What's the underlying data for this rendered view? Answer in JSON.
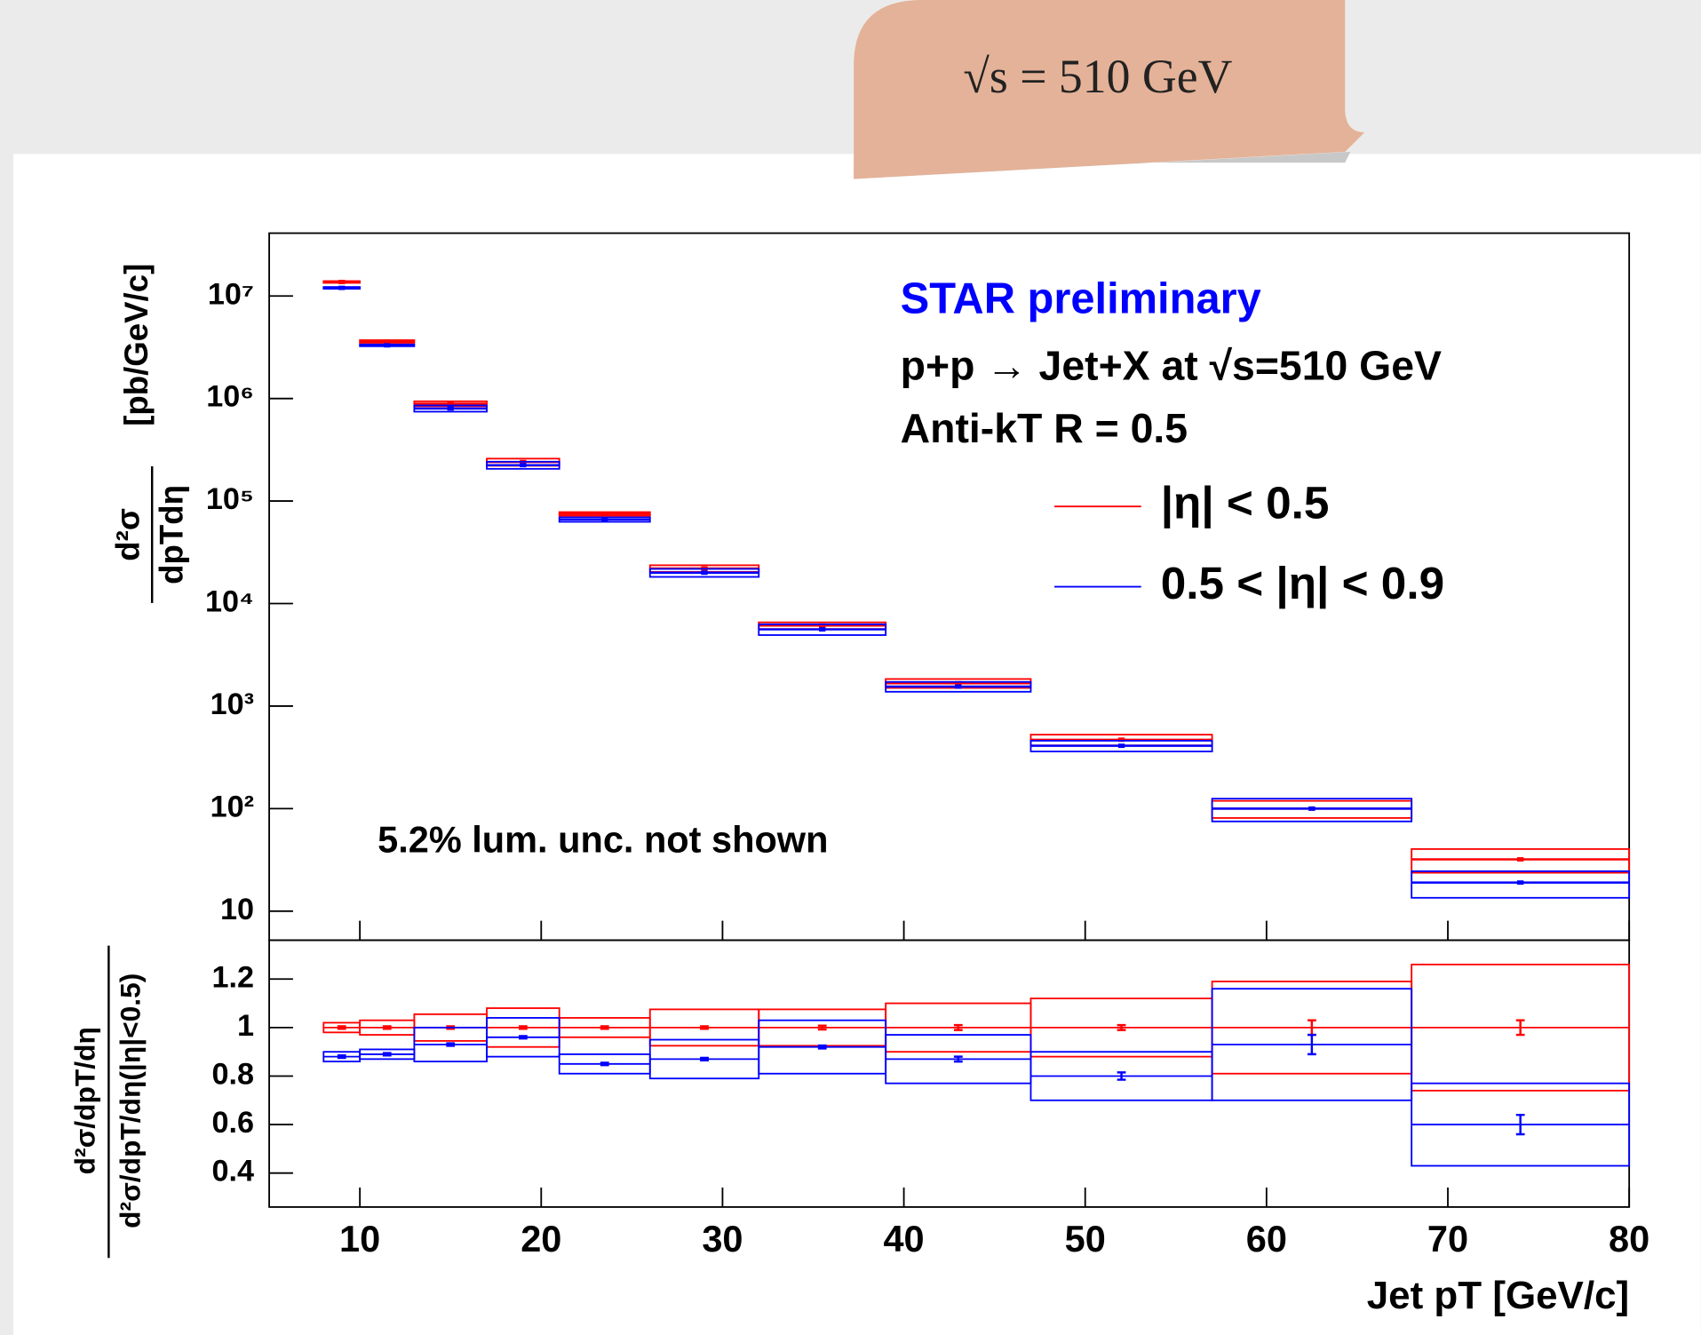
{
  "banner": "√s = 510 GeV",
  "chart_data": [
    {
      "type": "errorbox",
      "log_y": true,
      "annotations": [
        "STAR preliminary",
        "p+p → Jet+X at √s=510 GeV",
        "Anti-kT R = 0.5",
        "5.2% lum. unc. not shown"
      ],
      "ylabel_num": "d²σ",
      "ylabel_den": "dpTdη",
      "ylabel_unit": "[pb/GeV/c]",
      "bins": [
        8,
        10,
        13,
        17,
        21,
        26,
        32,
        39,
        47,
        57,
        68,
        80
      ],
      "x": [
        9,
        11.5,
        15,
        19,
        23.5,
        29,
        35.5,
        43,
        52,
        62.5,
        74
      ],
      "xlim": [
        5,
        80
      ],
      "xticks": [
        10,
        20,
        30,
        40,
        50,
        60,
        70,
        80
      ],
      "ylim": [
        5.2,
        41000000
      ],
      "yticks": [
        10,
        {
          "value": 100,
          "label": "10²"
        },
        {
          "value": 1000,
          "label": "10³"
        },
        {
          "value": 10000,
          "label": "10⁴"
        },
        {
          "value": 100000,
          "label": "10⁵"
        },
        {
          "value": 1000000,
          "label": "10⁶"
        },
        {
          "value": 10000000,
          "label": "10⁷"
        }
      ],
      "series": [
        {
          "name": "|η| < 0.5",
          "color": "#ff0000",
          "values": [
            13700000,
            3600000,
            890000,
            240000,
            75000,
            22000,
            6100,
            1670,
            470,
            100,
            32
          ],
          "sys_rel": [
            0.02,
            0.03,
            0.055,
            0.08,
            0.04,
            0.075,
            0.075,
            0.1,
            0.12,
            0.19,
            0.26
          ]
        },
        {
          "name": "0.5 < |η| < 0.9",
          "color": "#0000ff",
          "values": [
            12000000,
            3300000,
            800000,
            224000,
            66000,
            20000,
            5600,
            1550,
            410,
            100,
            19
          ],
          "sys_rel": [
            0.02,
            0.02,
            0.07,
            0.08,
            0.05,
            0.09,
            0.12,
            0.11,
            0.12,
            0.25,
            0.29
          ]
        }
      ]
    },
    {
      "type": "ratiobox",
      "xlabel": "Jet pT [GeV/c]",
      "ylabel_num": "d²σ/dpT/dη",
      "ylabel_den": "d²σ/dpT/dη(|η|<0.5)",
      "bins": [
        8,
        10,
        13,
        17,
        21,
        26,
        32,
        39,
        47,
        57,
        68,
        80
      ],
      "x": [
        9,
        11.5,
        15,
        19,
        23.5,
        29,
        35.5,
        43,
        52,
        62.5,
        74
      ],
      "xlim": [
        5,
        80
      ],
      "xticks": [
        10,
        20,
        30,
        40,
        50,
        60,
        70,
        80
      ],
      "ylim": [
        0.26,
        1.36
      ],
      "yticks": [
        0.4,
        0.6,
        0.8,
        1,
        1.2
      ],
      "series": [
        {
          "color": "#ff0000",
          "values": [
            1,
            1,
            1,
            1,
            1,
            1,
            1,
            1,
            1,
            1,
            1
          ],
          "errors": [
            0.005,
            0.005,
            0.005,
            0.005,
            0.005,
            0.005,
            0.008,
            0.01,
            0.01,
            0.03,
            0.03
          ],
          "sys": [
            0.02,
            0.03,
            0.055,
            0.08,
            0.04,
            0.075,
            0.075,
            0.1,
            0.12,
            0.19,
            0.26
          ]
        },
        {
          "color": "#0000ff",
          "values": [
            0.88,
            0.89,
            0.93,
            0.96,
            0.85,
            0.87,
            0.92,
            0.87,
            0.8,
            0.93,
            0.6
          ],
          "errors": [
            0.005,
            0.005,
            0.005,
            0.005,
            0.005,
            0.005,
            0.006,
            0.01,
            0.015,
            0.04,
            0.04
          ],
          "sys": [
            0.02,
            0.02,
            0.07,
            0.08,
            0.04,
            0.08,
            0.11,
            0.1,
            0.1,
            0.23,
            0.17
          ]
        }
      ]
    }
  ]
}
